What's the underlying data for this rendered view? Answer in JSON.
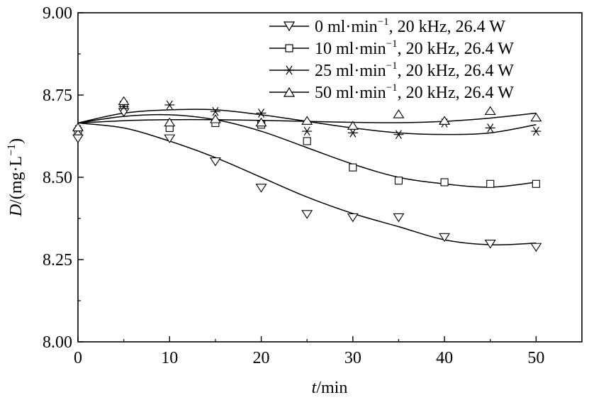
{
  "chart_data": {
    "type": "scatter",
    "xlabel_italic": "t",
    "xlabel_rest": "/min",
    "ylabel_italic": "D",
    "ylabel_rest": "/(mg·L",
    "ylabel_sup": "−1",
    "ylabel_close": ")",
    "xlim": [
      0,
      55
    ],
    "ylim": [
      8.0,
      9.0
    ],
    "xticks": [
      0,
      10,
      20,
      30,
      40,
      50
    ],
    "xtick_labels": [
      "0",
      "10",
      "20",
      "30",
      "40",
      "50"
    ],
    "yticks": [
      8.0,
      8.25,
      8.5,
      8.75,
      9.0
    ],
    "ytick_labels": [
      "8.00",
      "8.25",
      "8.50",
      "8.75",
      "9.00"
    ],
    "grid": false,
    "legend_position": "top-right",
    "x": [
      0,
      5,
      10,
      15,
      20,
      25,
      30,
      35,
      40,
      45,
      50
    ],
    "series": [
      {
        "name": "0 ml·min−1, 20 kHz, 26.4 W",
        "label_main": "0 ml·min",
        "label_sup": "−1",
        "label_tail": ", 20 kHz, 26.4 W",
        "marker": "triangle-down",
        "values": [
          8.62,
          8.7,
          8.62,
          8.55,
          8.47,
          8.39,
          8.38,
          8.38,
          8.32,
          8.3,
          8.29
        ],
        "fit": [
          8.665,
          8.65,
          8.61,
          8.56,
          8.5,
          8.44,
          8.39,
          8.35,
          8.31,
          8.295,
          8.3
        ]
      },
      {
        "name": "10 ml·min−1, 20 kHz, 26.4 W",
        "label_main": "10 ml·min",
        "label_sup": "−1",
        "label_tail": ", 20 kHz, 26.4 W",
        "marker": "square",
        "values": [
          8.64,
          8.72,
          8.65,
          8.665,
          8.66,
          8.61,
          8.53,
          8.49,
          8.485,
          8.48,
          8.48
        ],
        "fit": [
          8.665,
          8.685,
          8.69,
          8.675,
          8.64,
          8.59,
          8.54,
          8.5,
          8.48,
          8.47,
          8.485
        ]
      },
      {
        "name": "25 ml·min−1, 20 kHz, 26.4 W",
        "label_main": "25 ml·min",
        "label_sup": "−1",
        "label_tail": ", 20 kHz, 26.4 W",
        "marker": "asterisk",
        "values": [
          8.645,
          8.715,
          8.72,
          8.7,
          8.695,
          8.64,
          8.635,
          8.63,
          8.665,
          8.65,
          8.64
        ],
        "fit": [
          8.665,
          8.695,
          8.705,
          8.705,
          8.69,
          8.67,
          8.65,
          8.635,
          8.63,
          8.635,
          8.66
        ]
      },
      {
        "name": "50 ml·min−1, 20 kHz, 26.4 W",
        "label_main": "50 ml·min",
        "label_sup": "−1",
        "label_tail": ", 20 kHz, 26.4 W",
        "marker": "triangle-up",
        "values": [
          8.65,
          8.73,
          8.665,
          8.675,
          8.665,
          8.67,
          8.655,
          8.69,
          8.67,
          8.7,
          8.68
        ],
        "fit": [
          8.665,
          8.672,
          8.675,
          8.675,
          8.673,
          8.67,
          8.667,
          8.666,
          8.67,
          8.68,
          8.695
        ]
      }
    ]
  }
}
